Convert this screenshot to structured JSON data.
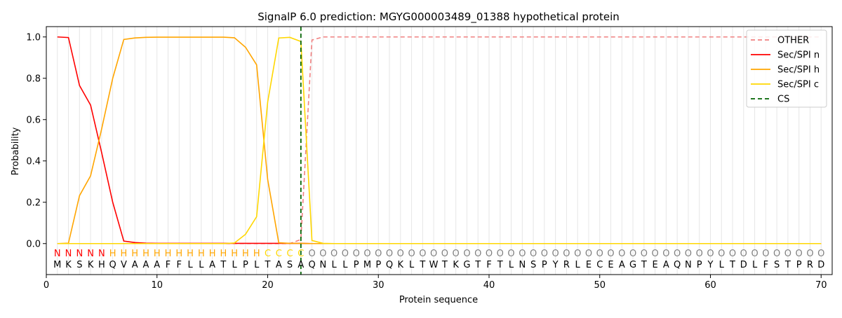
{
  "chart_data": {
    "type": "line",
    "title": "SignalP 6.0 prediction: MGYG000003489_01388 hypothetical protein",
    "xlabel": "Protein sequence",
    "ylabel": "Probability",
    "xlim": [
      0,
      71
    ],
    "ylim": [
      -0.15,
      1.05
    ],
    "xticks": [
      0,
      10,
      20,
      30,
      40,
      50,
      60,
      70
    ],
    "yticks": [
      0.0,
      0.2,
      0.4,
      0.6,
      0.8,
      1.0
    ],
    "ytick_labels": [
      "0.0",
      "0.2",
      "0.4",
      "0.6",
      "0.8",
      "1.0"
    ],
    "grid": "vertical lines at each residue",
    "legend_position": "top-right",
    "sequence": [
      "M",
      "K",
      "S",
      "K",
      "H",
      "Q",
      "V",
      "A",
      "A",
      "A",
      "F",
      "F",
      "L",
      "L",
      "A",
      "T",
      "L",
      "P",
      "L",
      "T",
      "A",
      "S",
      "A",
      "Q",
      "N",
      "L",
      "L",
      "P",
      "M",
      "P",
      "Q",
      "K",
      "L",
      "T",
      "W",
      "T",
      "K",
      "G",
      "T",
      "F",
      "T",
      "L",
      "N",
      "S",
      "P",
      "Y",
      "R",
      "L",
      "E",
      "C",
      "E",
      "A",
      "G",
      "T",
      "E",
      "A",
      "Q",
      "N",
      "P",
      "Y",
      "L",
      "T",
      "D",
      "L",
      "F",
      "S",
      "T",
      "P",
      "R",
      "D"
    ],
    "region_labels": [
      "N",
      "N",
      "N",
      "N",
      "N",
      "H",
      "H",
      "H",
      "H",
      "H",
      "H",
      "H",
      "H",
      "H",
      "H",
      "H",
      "H",
      "H",
      "H",
      "C",
      "C",
      "C",
      "C",
      "O",
      "O",
      "O",
      "O",
      "O",
      "O",
      "O",
      "O",
      "O",
      "O",
      "O",
      "O",
      "O",
      "O",
      "O",
      "O",
      "O",
      "O",
      "O",
      "O",
      "O",
      "O",
      "O",
      "O",
      "O",
      "O",
      "O",
      "O",
      "O",
      "O",
      "O",
      "O",
      "O",
      "O",
      "O",
      "O",
      "O",
      "O",
      "O",
      "O",
      "O",
      "O",
      "O",
      "O",
      "O",
      "O",
      "O"
    ],
    "region_colors": {
      "N": "#ff0000",
      "H": "#ffa500",
      "C": "#ffd700",
      "O": "#808080"
    },
    "cleavage_site": 23,
    "series": [
      {
        "name": "OTHER",
        "color": "#f08080",
        "dash": "dashed",
        "values": [
          0,
          0,
          0,
          0,
          0,
          0,
          0,
          0,
          0,
          0,
          0,
          0,
          0,
          0,
          0,
          0,
          0,
          0,
          0,
          0,
          0,
          0,
          0.02,
          0.985,
          1.0,
          1.0,
          1.0,
          1.0,
          1.0,
          1.0,
          1.0,
          1.0,
          1.0,
          1.0,
          1.0,
          1.0,
          1.0,
          1.0,
          1.0,
          1.0,
          1.0,
          1.0,
          1.0,
          1.0,
          1.0,
          1.0,
          1.0,
          1.0,
          1.0,
          1.0,
          1.0,
          1.0,
          1.0,
          1.0,
          1.0,
          1.0,
          1.0,
          1.0,
          1.0,
          1.0,
          1.0,
          1.0,
          1.0,
          1.0,
          1.0,
          1.0,
          1.0,
          1.0,
          1.0,
          1.0
        ]
      },
      {
        "name": "Sec/SPI n",
        "color": "#ff0000",
        "dash": "solid",
        "values": [
          1.0,
          0.997,
          0.765,
          0.67,
          0.44,
          0.2,
          0.012,
          0.005,
          0.002,
          0.001,
          0.001,
          0.001,
          0.001,
          0.001,
          0.001,
          0.001,
          0.001,
          0.001,
          0.001,
          0.001,
          0.001,
          0.001,
          0.001,
          0,
          0,
          0,
          0,
          0,
          0,
          0,
          0,
          0,
          0,
          0,
          0,
          0,
          0,
          0,
          0,
          0,
          0,
          0,
          0,
          0,
          0,
          0,
          0,
          0,
          0,
          0,
          0,
          0,
          0,
          0,
          0,
          0,
          0,
          0,
          0,
          0,
          0,
          0,
          0,
          0,
          0,
          0,
          0,
          0,
          0,
          0
        ]
      },
      {
        "name": "Sec/SPI h",
        "color": "#ffa500",
        "dash": "solid",
        "values": [
          0,
          0.002,
          0.232,
          0.328,
          0.555,
          0.8,
          0.988,
          0.995,
          0.998,
          0.999,
          0.999,
          0.999,
          0.999,
          0.999,
          0.999,
          0.999,
          0.996,
          0.95,
          0.865,
          0.31,
          0.004,
          0.001,
          0.001,
          0,
          0,
          0,
          0,
          0,
          0,
          0,
          0,
          0,
          0,
          0,
          0,
          0,
          0,
          0,
          0,
          0,
          0,
          0,
          0,
          0,
          0,
          0,
          0,
          0,
          0,
          0,
          0,
          0,
          0,
          0,
          0,
          0,
          0,
          0,
          0,
          0,
          0,
          0,
          0,
          0,
          0,
          0,
          0,
          0,
          0,
          0
        ]
      },
      {
        "name": "Sec/SPI c",
        "color": "#ffd700",
        "dash": "solid",
        "values": [
          0,
          0,
          0,
          0,
          0,
          0,
          0,
          0,
          0,
          0,
          0,
          0,
          0,
          0,
          0,
          0,
          0.003,
          0.045,
          0.13,
          0.685,
          0.995,
          0.998,
          0.978,
          0.015,
          0.001,
          0,
          0,
          0,
          0,
          0,
          0,
          0,
          0,
          0,
          0,
          0,
          0,
          0,
          0,
          0,
          0,
          0,
          0,
          0,
          0,
          0,
          0,
          0,
          0,
          0,
          0,
          0,
          0,
          0,
          0,
          0,
          0,
          0,
          0,
          0,
          0,
          0,
          0,
          0,
          0,
          0,
          0,
          0,
          0,
          0
        ]
      },
      {
        "name": "CS",
        "color": "#006400",
        "dash": "dashed",
        "values": []
      }
    ]
  }
}
